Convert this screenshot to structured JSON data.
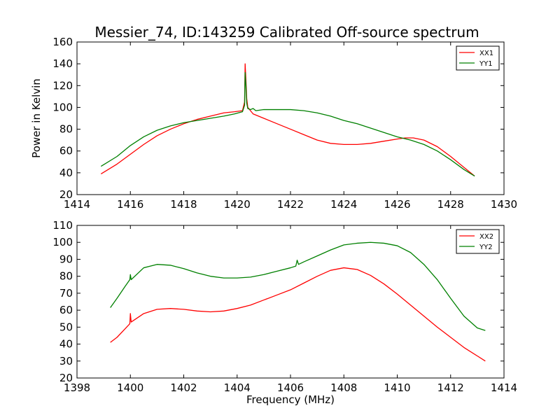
{
  "title": "Messier_74, ID:143259 Calibrated Off-source spectrum",
  "colors": {
    "red": "#ff0000",
    "green": "#008000"
  },
  "chart_data": [
    {
      "type": "line",
      "panel": "top",
      "xlabel": "",
      "ylabel": "Power in Kelvin",
      "xlim": [
        1414,
        1430
      ],
      "ylim": [
        20,
        160
      ],
      "xticks": [
        1414,
        1416,
        1418,
        1420,
        1422,
        1424,
        1426,
        1428,
        1430
      ],
      "yticks": [
        20,
        40,
        60,
        80,
        100,
        120,
        140,
        160
      ],
      "legend_position": "top-right",
      "series": [
        {
          "name": "XX1",
          "color": "#ff0000",
          "x": [
            1414.9,
            1415.5,
            1416.0,
            1416.5,
            1417.0,
            1417.5,
            1418.0,
            1418.5,
            1419.0,
            1419.5,
            1419.9,
            1420.2,
            1420.28,
            1420.3,
            1420.33,
            1420.36,
            1420.4,
            1420.5,
            1420.6,
            1420.8,
            1421.0,
            1421.5,
            1422.0,
            1422.5,
            1423.0,
            1423.5,
            1424.0,
            1424.5,
            1425.0,
            1425.5,
            1426.0,
            1426.3,
            1426.6,
            1427.0,
            1427.5,
            1428.0,
            1428.5,
            1428.9
          ],
          "y": [
            39,
            48,
            57,
            66,
            74,
            80,
            85,
            89,
            92,
            95,
            96,
            97,
            105,
            140,
            125,
            108,
            100,
            97,
            94,
            92,
            90,
            85,
            80,
            75,
            70,
            67,
            66,
            66,
            67,
            69,
            71,
            72,
            72,
            70,
            64,
            55,
            45,
            37
          ]
        },
        {
          "name": "YY1",
          "color": "#008000",
          "x": [
            1414.9,
            1415.5,
            1416.0,
            1416.5,
            1417.0,
            1417.5,
            1418.0,
            1418.5,
            1419.0,
            1419.5,
            1419.9,
            1420.2,
            1420.28,
            1420.3,
            1420.33,
            1420.36,
            1420.4,
            1420.5,
            1420.6,
            1420.7,
            1421.0,
            1421.5,
            1422.0,
            1422.5,
            1423.0,
            1423.5,
            1424.0,
            1424.5,
            1425.0,
            1425.5,
            1426.0,
            1426.5,
            1427.0,
            1427.5,
            1428.0,
            1428.5,
            1428.9
          ],
          "y": [
            46,
            55,
            65,
            73,
            79,
            83,
            86,
            88,
            90,
            92,
            94,
            96,
            102,
            132,
            120,
            104,
            99,
            98,
            99,
            97,
            98,
            98,
            98,
            97,
            95,
            92,
            88,
            85,
            81,
            77,
            73,
            70,
            66,
            60,
            52,
            43,
            37
          ]
        }
      ]
    },
    {
      "type": "line",
      "panel": "bottom",
      "xlabel": "Frequency (MHz)",
      "ylabel": "",
      "xlim": [
        1398,
        1414
      ],
      "ylim": [
        20,
        110
      ],
      "xticks": [
        1398,
        1400,
        1402,
        1404,
        1406,
        1408,
        1410,
        1412,
        1414
      ],
      "yticks": [
        20,
        30,
        40,
        50,
        60,
        70,
        80,
        90,
        100,
        110
      ],
      "legend_position": "top-right",
      "series": [
        {
          "name": "XX2",
          "color": "#ff0000",
          "x": [
            1399.25,
            1399.5,
            1399.8,
            1399.98,
            1400.0,
            1400.03,
            1400.5,
            1401.0,
            1401.5,
            1402.0,
            1402.5,
            1403.0,
            1403.5,
            1404.0,
            1404.5,
            1405.0,
            1405.5,
            1406.0,
            1406.5,
            1407.0,
            1407.5,
            1408.0,
            1408.5,
            1409.0,
            1409.5,
            1410.0,
            1410.5,
            1411.0,
            1411.5,
            1412.0,
            1412.5,
            1413.0,
            1413.3
          ],
          "y": [
            41,
            44,
            49,
            52,
            58,
            53,
            58,
            60.5,
            61,
            60.5,
            59.5,
            59,
            59.5,
            61,
            63,
            66,
            69,
            72,
            76,
            80,
            83.5,
            85,
            84,
            80.5,
            75.5,
            69.5,
            63,
            56.5,
            50,
            44,
            38,
            33,
            30
          ]
        },
        {
          "name": "YY2",
          "color": "#008000",
          "x": [
            1399.25,
            1399.5,
            1399.8,
            1399.98,
            1400.0,
            1400.03,
            1400.5,
            1401.0,
            1401.5,
            1402.0,
            1402.5,
            1403.0,
            1403.5,
            1404.0,
            1404.5,
            1405.0,
            1405.5,
            1406.0,
            1406.2,
            1406.25,
            1406.3,
            1406.5,
            1407.0,
            1407.5,
            1408.0,
            1408.5,
            1409.0,
            1409.5,
            1410.0,
            1410.5,
            1411.0,
            1411.5,
            1412.0,
            1412.5,
            1413.0,
            1413.3
          ],
          "y": [
            61.5,
            67,
            74,
            78,
            81,
            78,
            85,
            87,
            86.5,
            84.5,
            82,
            80,
            79,
            79,
            79.5,
            81,
            83,
            85,
            86,
            89.5,
            87,
            88.5,
            92,
            95.5,
            98.5,
            99.5,
            100,
            99.5,
            98,
            94,
            87,
            78,
            67,
            56.5,
            49.5,
            48
          ]
        }
      ]
    }
  ]
}
